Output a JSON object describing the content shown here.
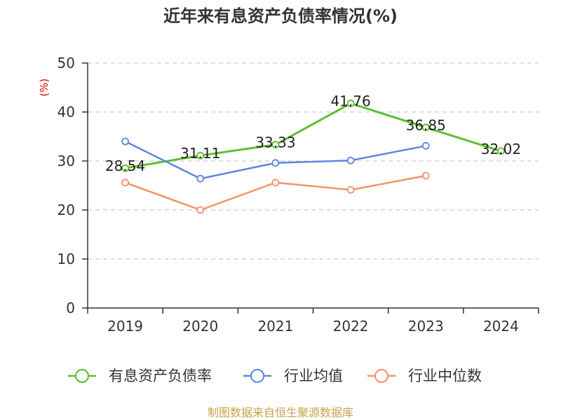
{
  "chart_data": {
    "type": "line",
    "title": "近年来有息资产负债率情况(%)",
    "xlabel": "",
    "ylabel": "(%)",
    "ylim": [
      0,
      50
    ],
    "yticks": [
      0,
      10,
      20,
      30,
      40,
      50
    ],
    "categories": [
      "2019",
      "2020",
      "2021",
      "2022",
      "2023",
      "2024"
    ],
    "grid": true,
    "legend_position": "bottom",
    "series": [
      {
        "name": "有息资产负债率",
        "color": "#5cbf2a",
        "show_data_labels": true,
        "values": [
          28.54,
          31.11,
          33.33,
          41.76,
          36.85,
          32.02
        ]
      },
      {
        "name": "行业均值",
        "color": "#5b87db",
        "show_data_labels": false,
        "values": [
          34.0,
          26.4,
          29.6,
          30.1,
          33.1,
          null
        ]
      },
      {
        "name": "行业中位数",
        "color": "#f4926a",
        "show_data_labels": false,
        "values": [
          25.6,
          20.0,
          25.6,
          24.1,
          27.0,
          null
        ]
      }
    ]
  },
  "source": "制图数据来自恒生聚源数据库"
}
